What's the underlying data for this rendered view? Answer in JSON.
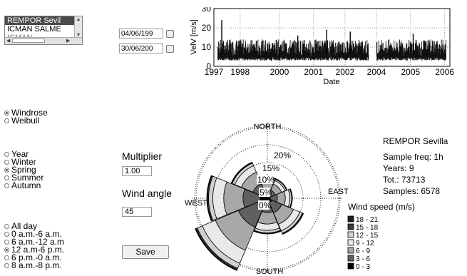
{
  "stations": {
    "items": [
      "REMPOR Sevil",
      "ICMAN SALME",
      "ICMAN ..."
    ],
    "selected_index": 0
  },
  "dates": {
    "start": "04/06/199",
    "end": "30/06/200"
  },
  "analysis": {
    "options": [
      {
        "label": "Windrose",
        "selected": true
      },
      {
        "label": "Weibull",
        "selected": false
      }
    ]
  },
  "season": {
    "options": [
      {
        "label": "Year",
        "selected": false
      },
      {
        "label": "Winter",
        "selected": false
      },
      {
        "label": "Spring",
        "selected": true
      },
      {
        "label": "Summer",
        "selected": false
      },
      {
        "label": "Autumn",
        "selected": false
      }
    ]
  },
  "hours": {
    "options": [
      {
        "label": "All day",
        "selected": false
      },
      {
        "label": "0 a.m.-6 a.m.",
        "selected": false
      },
      {
        "label": "6 a.m.-12 a.m",
        "selected": false
      },
      {
        "label": "12 a.m-6 p.m.",
        "selected": true
      },
      {
        "label": "6 p.m.-0 a.m.",
        "selected": false
      },
      {
        "label": "8 a.m.-8 p.m.",
        "selected": false
      }
    ]
  },
  "controls": {
    "multiplier_label": "Multiplier",
    "multiplier_value": "1.00",
    "wind_angle_label": "Wind angle",
    "wind_angle_value": "45",
    "save_label": "Save"
  },
  "info": {
    "station": "REMPOR Sevilla",
    "freq": "Sample freq: 1h",
    "years": "Years: 9",
    "total": "Tot.: 73713",
    "samples": "Samples: 6578"
  },
  "chart_data": [
    {
      "type": "line",
      "xlabel": "Date",
      "ylabel": "VelV [m/s]",
      "xlim": [
        1997,
        2006
      ],
      "ylim": [
        0,
        30
      ],
      "x_ticks": [
        "1997",
        "1998",
        "2000",
        "2001",
        "2002",
        "2004",
        "2005",
        "2006"
      ],
      "x_tick_values": [
        1997,
        1998,
        1999.5,
        2000.8,
        2002,
        2003.2,
        2004.5,
        2005.8
      ],
      "y_ticks": [
        0,
        10,
        20,
        30
      ],
      "grid": true,
      "gap": [
        2002.9,
        2003.2
      ],
      "typical_range": [
        3,
        12
      ],
      "peaks": [
        {
          "x": 1997.3,
          "y": 24
        },
        {
          "x": 2000.2,
          "y": 16
        },
        {
          "x": 2001.3,
          "y": 19
        },
        {
          "x": 2002.2,
          "y": 18
        },
        {
          "x": 2004.6,
          "y": 17
        }
      ]
    },
    {
      "type": "windrose",
      "directions": [
        "N",
        "NE",
        "E",
        "SE",
        "S",
        "SW",
        "W",
        "NW"
      ],
      "direction_labels": {
        "north": "NORTH",
        "east": "EAST",
        "south": "SOUTH",
        "west": "WEST"
      },
      "rings": [
        "0%",
        "5%",
        "10%",
        "15%",
        "20%"
      ],
      "ring_values": [
        0,
        5,
        10,
        15,
        20
      ],
      "totals_pct": [
        6,
        6,
        7,
        11,
        10,
        22,
        17,
        11
      ],
      "legend_title": "Wind speed (m/s)",
      "legend": [
        "18 - 21",
        "15 - 18",
        "12 - 15",
        "9 - 12",
        "6 - 9",
        "3 - 6",
        "0 - 3"
      ],
      "legend_colors": [
        "#1e1e1e",
        "#3c3c3c",
        "#d0d0d0",
        "#e9e9e9",
        "#a8a8a8",
        "#606060",
        "#000000"
      ]
    }
  ]
}
